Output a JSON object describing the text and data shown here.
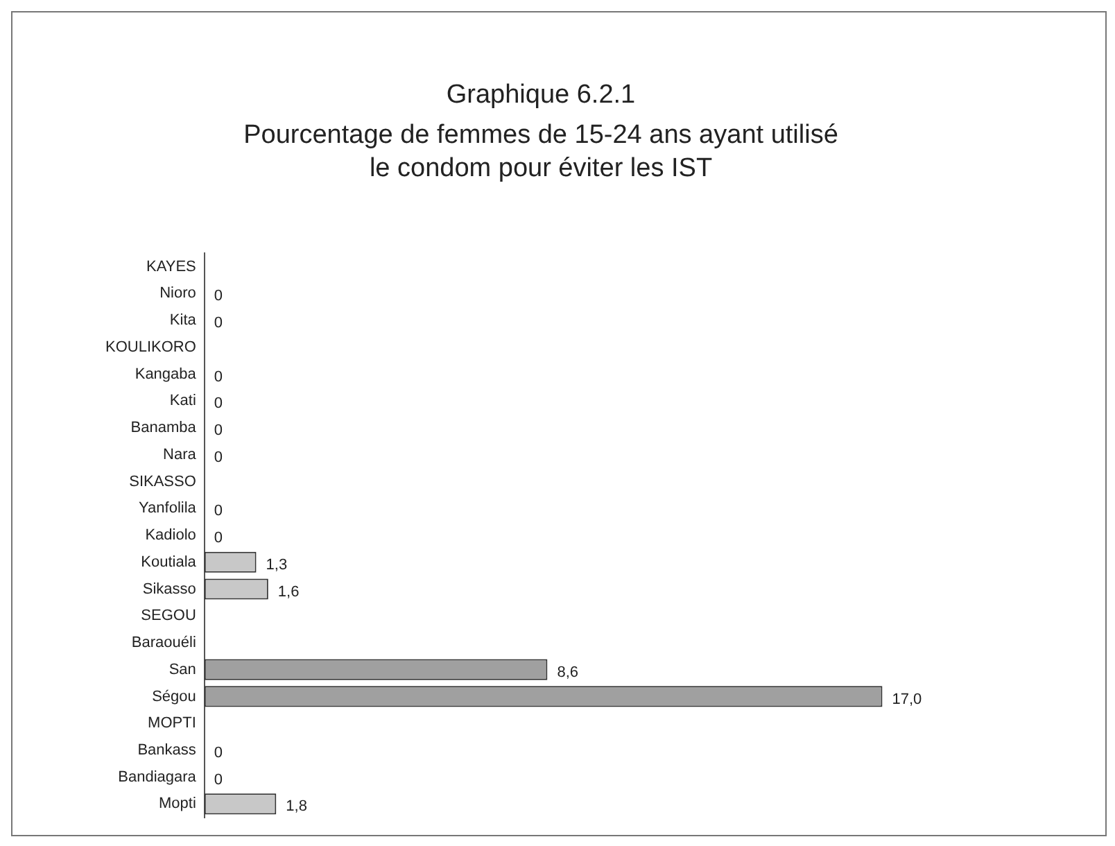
{
  "chart_data": {
    "type": "bar",
    "orientation": "horizontal",
    "title": "Graphique 6.2.1",
    "subtitle": "Pourcentage de femmes de 15-24 ans ayant utilisé le condom pour éviter les IST",
    "categories": [
      "KAYES",
      "Nioro",
      "Kita",
      "KOULIKORO",
      "Kangaba",
      "Kati",
      "Banamba",
      "Nara",
      "SIKASSO",
      "Yanfolila",
      "Kadiolo",
      "Koutiala",
      "Sikasso",
      "SEGOU",
      "Baraouéli",
      "San",
      "Ségou",
      "MOPTI",
      "Bankass",
      "Bandiagara",
      "Mopti"
    ],
    "values": [
      null,
      0,
      0,
      null,
      0,
      0,
      0,
      0,
      null,
      0,
      0,
      1.3,
      1.6,
      null,
      null,
      8.6,
      17.0,
      null,
      0,
      0,
      1.8
    ],
    "value_labels": [
      null,
      "0",
      "0",
      null,
      "0",
      "0",
      "0",
      "0",
      null,
      "0",
      "0",
      "1,3",
      "1,6",
      null,
      null,
      "8,6",
      "17,0",
      null,
      "0",
      "0",
      "1,8"
    ],
    "colors": [
      "#c8c8c8",
      "#c8c8c8",
      "#c8c8c8",
      "#c8c8c8",
      "#c8c8c8",
      "#c8c8c8",
      "#c8c8c8",
      "#c8c8c8",
      "#c8c8c8",
      "#c8c8c8",
      "#c8c8c8",
      "#c8c8c8",
      "#c8c8c8",
      "#c8c8c8",
      "#a0a0a0",
      "#a0a0a0",
      "#a0a0a0",
      "#c8c8c8",
      "#c8c8c8",
      "#c8c8c8",
      "#c8c8c8"
    ],
    "grid": false,
    "legend": false,
    "tick_labels": "y"
  }
}
